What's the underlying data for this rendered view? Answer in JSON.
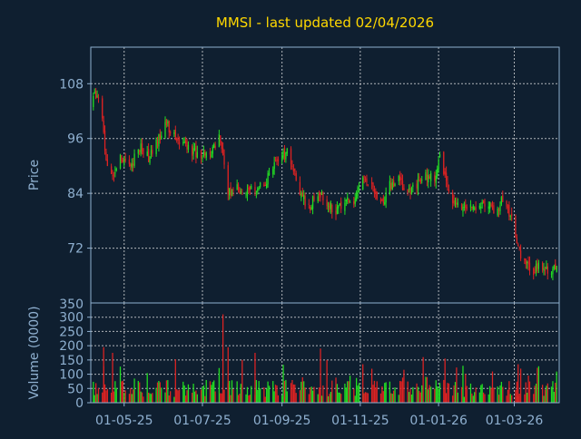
{
  "chart_data": {
    "type": "candlestick",
    "title": "MMSI - last updated 02/04/2026",
    "price_panel": {
      "ylabel": "Price",
      "ylim": [
        60,
        116
      ],
      "yticks": [
        72,
        84,
        96,
        108
      ],
      "grid": true
    },
    "volume_panel": {
      "ylabel": "Volume (0000)",
      "ylim": [
        0,
        350
      ],
      "yticks": [
        0,
        50,
        100,
        150,
        200,
        250,
        300,
        350
      ],
      "grid": true
    },
    "x_axis": {
      "start": "2025-04-05",
      "end": "2026-04-05",
      "ticks": [
        {
          "date": "2025-05-01",
          "label": "01-05-25"
        },
        {
          "date": "2025-07-01",
          "label": "01-07-25"
        },
        {
          "date": "2025-09-01",
          "label": "01-09-25"
        },
        {
          "date": "2025-11-01",
          "label": "01-11-25"
        },
        {
          "date": "2026-01-01",
          "label": "01-01-26"
        },
        {
          "date": "2026-03-01",
          "label": "01-03-26"
        }
      ]
    },
    "colors": {
      "up": "#22dd22",
      "down": "#dd2222",
      "background": "#0f1f30",
      "title": "#ffd800",
      "axis": "#8fb0d0"
    },
    "series": [
      {
        "date": "2025-04-04",
        "close": 104
      },
      {
        "date": "2025-04-12",
        "close": 106
      },
      {
        "date": "2025-04-16",
        "close": 93
      },
      {
        "date": "2025-04-22",
        "close": 87
      },
      {
        "date": "2025-04-29",
        "close": 92
      },
      {
        "date": "2025-05-06",
        "close": 90
      },
      {
        "date": "2025-05-13",
        "close": 94
      },
      {
        "date": "2025-05-20",
        "close": 92
      },
      {
        "date": "2025-05-27",
        "close": 96
      },
      {
        "date": "2025-06-03",
        "close": 99
      },
      {
        "date": "2025-06-10",
        "close": 96
      },
      {
        "date": "2025-06-17",
        "close": 95
      },
      {
        "date": "2025-06-24",
        "close": 93
      },
      {
        "date": "2025-07-01",
        "close": 92
      },
      {
        "date": "2025-07-08",
        "close": 93
      },
      {
        "date": "2025-07-14",
        "close": 96
      },
      {
        "date": "2025-07-17",
        "close": 93
      },
      {
        "date": "2025-07-21",
        "close": 84
      },
      {
        "date": "2025-07-28",
        "close": 85
      },
      {
        "date": "2025-08-04",
        "close": 84
      },
      {
        "date": "2025-08-11",
        "close": 85
      },
      {
        "date": "2025-08-18",
        "close": 86
      },
      {
        "date": "2025-08-25",
        "close": 90
      },
      {
        "date": "2025-09-01",
        "close": 92
      },
      {
        "date": "2025-09-05",
        "close": 93
      },
      {
        "date": "2025-09-10",
        "close": 89
      },
      {
        "date": "2025-09-15",
        "close": 84
      },
      {
        "date": "2025-09-22",
        "close": 81
      },
      {
        "date": "2025-09-29",
        "close": 84
      },
      {
        "date": "2025-10-06",
        "close": 82
      },
      {
        "date": "2025-10-13",
        "close": 80
      },
      {
        "date": "2025-10-20",
        "close": 83
      },
      {
        "date": "2025-10-27",
        "close": 82
      },
      {
        "date": "2025-11-03",
        "close": 88
      },
      {
        "date": "2025-11-10",
        "close": 86
      },
      {
        "date": "2025-11-17",
        "close": 81
      },
      {
        "date": "2025-11-24",
        "close": 86
      },
      {
        "date": "2025-12-01",
        "close": 87
      },
      {
        "date": "2025-12-08",
        "close": 84
      },
      {
        "date": "2025-12-15",
        "close": 86
      },
      {
        "date": "2025-12-22",
        "close": 88
      },
      {
        "date": "2025-12-29",
        "close": 87
      },
      {
        "date": "2026-01-02",
        "close": 93
      },
      {
        "date": "2026-01-06",
        "close": 88
      },
      {
        "date": "2026-01-10",
        "close": 83
      },
      {
        "date": "2026-01-17",
        "close": 81
      },
      {
        "date": "2026-01-24",
        "close": 82
      },
      {
        "date": "2026-01-31",
        "close": 81
      },
      {
        "date": "2026-02-07",
        "close": 82
      },
      {
        "date": "2026-02-14",
        "close": 80
      },
      {
        "date": "2026-02-21",
        "close": 83
      },
      {
        "date": "2026-02-28",
        "close": 78
      },
      {
        "date": "2026-03-04",
        "close": 72
      },
      {
        "date": "2026-03-08",
        "close": 69
      },
      {
        "date": "2026-03-14",
        "close": 67
      },
      {
        "date": "2026-03-21",
        "close": 68
      },
      {
        "date": "2026-03-28",
        "close": 67
      },
      {
        "date": "2026-04-04",
        "close": 68
      }
    ],
    "volume_spikes": [
      {
        "date": "2025-04-15",
        "volume": 195
      },
      {
        "date": "2025-04-22",
        "volume": 175
      },
      {
        "date": "2025-07-17",
        "volume": 310
      },
      {
        "date": "2025-07-21",
        "volume": 195
      },
      {
        "date": "2025-08-11",
        "volume": 175
      },
      {
        "date": "2025-10-01",
        "volume": 190
      },
      {
        "date": "2025-10-06",
        "volume": 150
      },
      {
        "date": "2025-11-03",
        "volume": 135
      },
      {
        "date": "2025-12-20",
        "volume": 160
      },
      {
        "date": "2026-01-06",
        "volume": 155
      },
      {
        "date": "2026-03-04",
        "volume": 135
      }
    ]
  }
}
